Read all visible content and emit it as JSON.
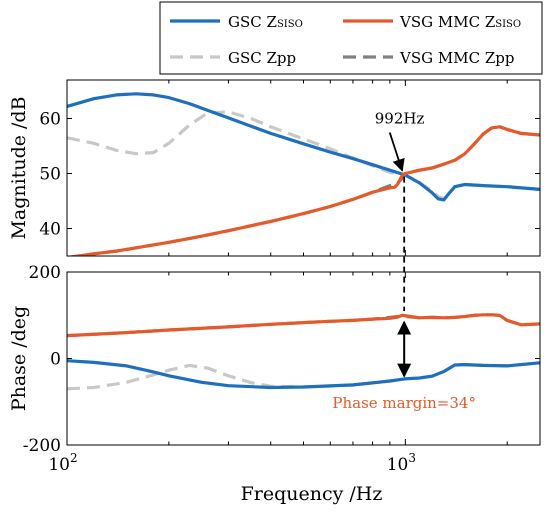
{
  "chart_data": [
    {
      "type": "line",
      "panel": "magnitude",
      "ylabel": "Magnitude /dB",
      "xscale": "log",
      "xlim": [
        100,
        2500
      ],
      "ylim": [
        35,
        67
      ],
      "yticks": [
        {
          "value": 40,
          "label": "40"
        },
        {
          "value": 50,
          "label": "50"
        },
        {
          "value": 60,
          "label": "60"
        }
      ],
      "grid": false,
      "series": [
        {
          "name": "GSC Zpp",
          "color": "#c8c8c8",
          "dash": "dashed",
          "x": [
            100,
            120,
            140,
            160,
            180,
            200,
            230,
            260,
            300,
            350,
            400,
            500,
            600,
            700,
            800,
            900,
            1000,
            1100,
            1200,
            1250,
            1300,
            1350,
            1400,
            1500,
            1700,
            2000,
            2500
          ],
          "y": [
            56.5,
            55.5,
            54.2,
            53.6,
            53.8,
            55.5,
            58.8,
            61.0,
            61.2,
            60.0,
            58.5,
            56.3,
            54.5,
            52.8,
            51.4,
            50.2,
            49.7,
            48.4,
            46.8,
            45.8,
            45.4,
            46.5,
            47.6,
            48.0,
            47.8,
            47.6,
            47.1
          ]
        },
        {
          "name": "GSC Z_SISO",
          "color": "#1f6fbf",
          "dash": "solid",
          "x": [
            100,
            120,
            140,
            160,
            180,
            200,
            230,
            260,
            300,
            350,
            400,
            500,
            600,
            700,
            800,
            900,
            1000,
            1100,
            1200,
            1250,
            1300,
            1350,
            1400,
            1500,
            1700,
            2000,
            2500
          ],
          "y": [
            62.2,
            63.6,
            64.3,
            64.5,
            64.3,
            63.8,
            62.7,
            61.5,
            60.1,
            58.6,
            57.3,
            55.4,
            53.9,
            52.7,
            51.6,
            50.6,
            49.7,
            48.3,
            46.5,
            45.4,
            45.2,
            46.5,
            47.6,
            48.0,
            47.8,
            47.6,
            47.1
          ]
        },
        {
          "name": "VSG MMC Zpp",
          "color": "#808080",
          "dash": "dashed",
          "x": [
            100,
            120,
            140,
            160,
            200,
            250,
            300,
            400,
            500,
            600,
            700,
            800,
            900,
            950,
            980,
            1000,
            1100,
            1200,
            1300,
            1400,
            1500,
            1600,
            1700,
            1800,
            1900,
            2000,
            2200,
            2500
          ],
          "y": [
            34.7,
            35.4,
            35.9,
            36.5,
            37.5,
            38.6,
            39.6,
            41.3,
            42.7,
            44.0,
            45.3,
            46.6,
            47.8,
            48.3,
            49.2,
            50.0,
            50.6,
            51.0,
            51.7,
            52.4,
            53.6,
            55.4,
            57.2,
            58.3,
            58.5,
            58.0,
            57.3,
            57.0
          ]
        },
        {
          "name": "VSG MMC Z_SISO",
          "color": "#e65a2a",
          "dash": "solid",
          "x": [
            100,
            120,
            140,
            160,
            200,
            250,
            300,
            400,
            500,
            600,
            700,
            800,
            900,
            930,
            950,
            970,
            985,
            1000,
            1100,
            1200,
            1300,
            1400,
            1500,
            1600,
            1700,
            1800,
            1900,
            2000,
            2200,
            2500
          ],
          "y": [
            34.7,
            35.4,
            35.9,
            36.5,
            37.5,
            38.6,
            39.6,
            41.3,
            42.7,
            44.0,
            45.3,
            46.6,
            47.4,
            47.5,
            48.1,
            49.2,
            49.8,
            50.0,
            50.6,
            51.0,
            51.7,
            52.4,
            53.6,
            55.4,
            57.2,
            58.3,
            58.5,
            58.0,
            57.3,
            57.0
          ]
        }
      ]
    },
    {
      "type": "line",
      "panel": "phase",
      "ylabel": "Phase /deg",
      "xlabel": "Frequency /Hz",
      "xscale": "log",
      "xlim": [
        100,
        2500
      ],
      "ylim": [
        -200,
        200
      ],
      "yticks": [
        {
          "value": -200,
          "label": "-200"
        },
        {
          "value": 0,
          "label": "0"
        },
        {
          "value": 200,
          "label": "200"
        }
      ],
      "xticks": [
        {
          "value": 100,
          "base": "10",
          "exp": "2"
        },
        {
          "value": 1000,
          "base": "10",
          "exp": "3"
        }
      ],
      "grid": false,
      "series": [
        {
          "name": "GSC Zpp",
          "color": "#c8c8c8",
          "dash": "dashed",
          "x": [
            100,
            120,
            150,
            180,
            200,
            230,
            260,
            300,
            350,
            400,
            500,
            700,
            900,
            1000,
            1100,
            1200,
            1300,
            1400,
            1500,
            1700,
            2000,
            2500
          ],
          "y": [
            -70,
            -67,
            -55,
            -38,
            -27,
            -16,
            -22,
            -40,
            -56,
            -64,
            -66,
            -62,
            -52,
            -47,
            -45,
            -41,
            -30,
            -15,
            -14,
            -16,
            -17,
            -10
          ]
        },
        {
          "name": "GSC Z_SISO",
          "color": "#1f6fbf",
          "dash": "solid",
          "x": [
            100,
            120,
            150,
            180,
            200,
            250,
            300,
            400,
            500,
            700,
            900,
            1000,
            1100,
            1200,
            1300,
            1400,
            1500,
            1700,
            2000,
            2500
          ],
          "y": [
            -5,
            -9,
            -17,
            -31,
            -40,
            -55,
            -63,
            -67,
            -66,
            -61,
            -52,
            -47,
            -45,
            -41,
            -30,
            -15,
            -14,
            -16,
            -17,
            -10
          ]
        },
        {
          "name": "VSG MMC Zpp",
          "color": "#808080",
          "dash": "dashed",
          "x": [
            100,
            150,
            200,
            300,
            400,
            500,
            600,
            700,
            800,
            900,
            950,
            1000,
            1100,
            1200,
            1300,
            1400,
            1500,
            1600,
            1700,
            1800,
            1900,
            2000,
            2200,
            2500
          ],
          "y": [
            53,
            60,
            66,
            73,
            79,
            83,
            86,
            88,
            91,
            95,
            97,
            97,
            94,
            95,
            94,
            95,
            97,
            100,
            101,
            101,
            100,
            88,
            78,
            80
          ]
        },
        {
          "name": "VSG MMC Z_SISO",
          "color": "#e65a2a",
          "dash": "solid",
          "x": [
            100,
            150,
            200,
            300,
            400,
            500,
            600,
            700,
            800,
            900,
            950,
            980,
            1000,
            1100,
            1200,
            1300,
            1400,
            1500,
            1600,
            1700,
            1800,
            1900,
            2000,
            2200,
            2500
          ],
          "y": [
            53,
            60,
            66,
            73,
            79,
            83,
            86,
            88,
            91,
            93,
            96,
            100,
            99,
            94,
            95,
            94,
            95,
            97,
            100,
            101,
            101,
            100,
            88,
            78,
            80
          ]
        }
      ]
    }
  ],
  "legend": {
    "placement": "top-center",
    "entries": [
      {
        "base": "GSC Z",
        "sub": "SISO",
        "color": "#1f6fbf",
        "dash": "solid"
      },
      {
        "base": "VSG MMC Z",
        "sub": "SISO",
        "color": "#e65a2a",
        "dash": "solid"
      },
      {
        "base": "GSC Zpp",
        "sub": "",
        "color": "#c8c8c8",
        "dash": "dashed"
      },
      {
        "base": "VSG MMC Zpp",
        "sub": "",
        "color": "#808080",
        "dash": "dashed"
      }
    ]
  },
  "annotations": {
    "crossover": {
      "label": "992Hz",
      "freq": 992,
      "mag": 49.8,
      "label_freq": 840,
      "label_mag": 58
    },
    "phase_margin": {
      "label": "Phase margin=34°",
      "color": "#e65a2a",
      "freq": 992,
      "phase_top": 96,
      "phase_bottom": -48,
      "label_phase": -115
    }
  }
}
